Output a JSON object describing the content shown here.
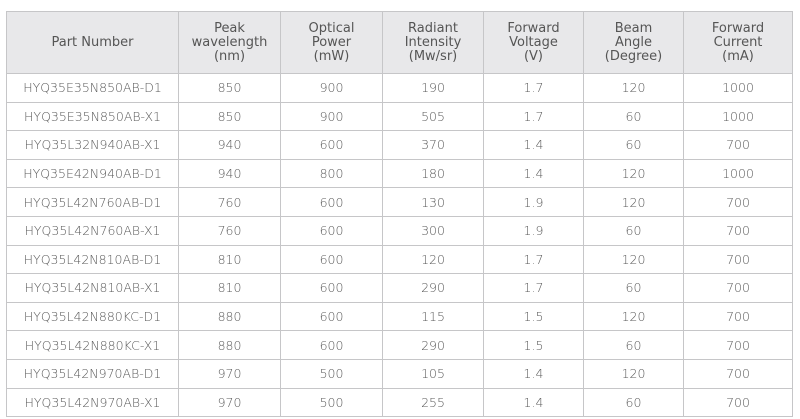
{
  "table": {
    "headers": [
      "Part Number",
      "Peak\nwavelength\n(nm)",
      "Optical\nPower\n(mW)",
      "Radiant\nIntensity\n(Mw/sr)",
      "Forward\nVoltage\n(V)",
      "Beam\nAngle\n(Degree)",
      "Forward\nCurrent\n(mA)"
    ],
    "rows": [
      [
        "HYQ35E35N850AB-D1",
        "850",
        "900",
        "190",
        "1.7",
        "120",
        "1000"
      ],
      [
        "HYQ35E35N850AB-X1",
        "850",
        "900",
        "505",
        "1.7",
        "60",
        "1000"
      ],
      [
        "HYQ35L32N940AB-X1",
        "940",
        "600",
        "370",
        "1.4",
        "60",
        "700"
      ],
      [
        "HYQ35E42N940AB-D1",
        "940",
        "800",
        "180",
        "1.4",
        "120",
        "1000"
      ],
      [
        "HYQ35L42N760AB-D1",
        "760",
        "600",
        "130",
        "1.9",
        "120",
        "700"
      ],
      [
        "HYQ35L42N760AB-X1",
        "760",
        "600",
        "300",
        "1.9",
        "60",
        "700"
      ],
      [
        "HYQ35L42N810AB-D1",
        "810",
        "600",
        "120",
        "1.7",
        "120",
        "700"
      ],
      [
        "HYQ35L42N810AB-X1",
        "810",
        "600",
        "290",
        "1.7",
        "60",
        "700"
      ],
      [
        "HYQ35L42N880KC-D1",
        "880",
        "600",
        "115",
        "1.5",
        "120",
        "700"
      ],
      [
        "HYQ35L42N880KC-X1",
        "880",
        "600",
        "290",
        "1.5",
        "60",
        "700"
      ],
      [
        "HYQ35L42N970AB-D1",
        "970",
        "500",
        "105",
        "1.4",
        "120",
        "700"
      ],
      [
        "HYQ35L42N970AB-X1",
        "970",
        "500",
        "255",
        "1.4",
        "60",
        "700"
      ]
    ]
  },
  "colors": {
    "header_bg": "#e8e8ea",
    "border": "#c6c6c8",
    "text": "#5a5a5a"
  }
}
